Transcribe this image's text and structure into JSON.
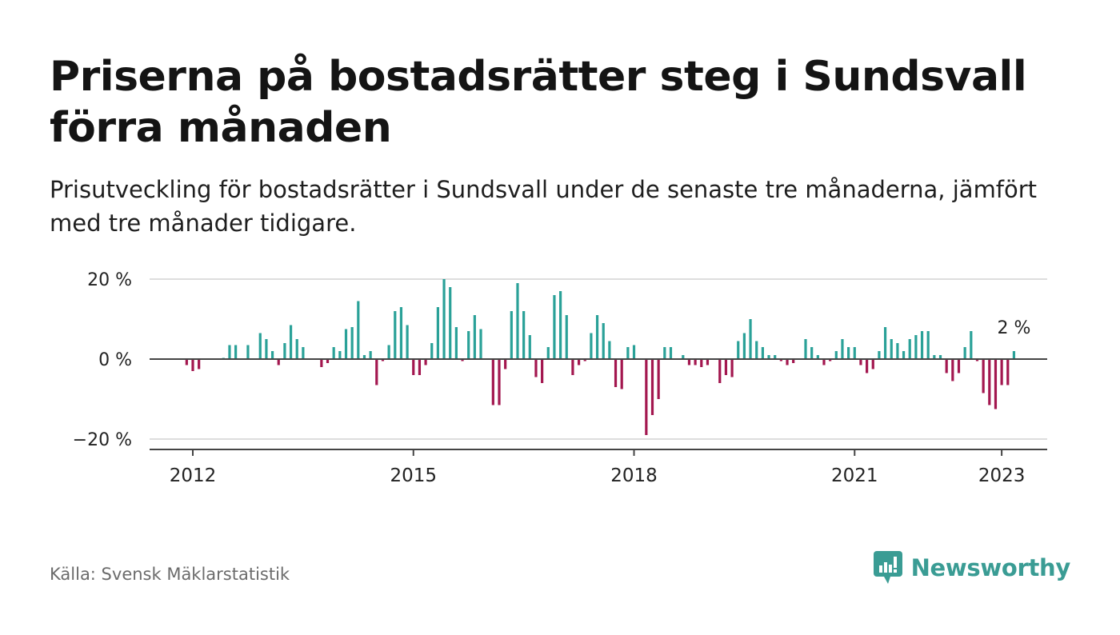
{
  "title": "Priserna på bostadsrätter steg i Sundsvall förra månaden",
  "subtitle": "Prisutveckling för bostadsrätter i Sundsvall under de senaste tre månaderna, jämfört med tre månader tidigare.",
  "source": "Källa: Svensk Mäklarstatistik",
  "brand": "Newsworthy",
  "colors": {
    "positive": "#2aa198",
    "negative": "#a3174f",
    "brand": "#3a9c94",
    "grid": "#dddddd",
    "axis": "#444444"
  },
  "chart_data": {
    "type": "bar",
    "x_start": "2011-06",
    "y_ticks": [
      {
        "value": 20,
        "label": "20 %"
      },
      {
        "value": 0,
        "label": "0 %"
      },
      {
        "value": -20,
        "label": "−20 %"
      }
    ],
    "x_ticks": [
      "2012",
      "2015",
      "2018",
      "2021",
      "2023"
    ],
    "ylim": [
      -22.5,
      22
    ],
    "grid": true,
    "annotation": "2 %",
    "values": [
      0,
      0,
      0,
      0,
      0,
      0,
      -1.5,
      -3,
      -2.5,
      0,
      0,
      0,
      0.3,
      3.5,
      3.5,
      0,
      3.5,
      0,
      6.5,
      5,
      2,
      -1.5,
      4,
      8.5,
      5,
      3,
      0,
      0,
      -2,
      -1,
      3,
      2,
      7.5,
      8,
      14.5,
      1,
      2,
      -6.5,
      -0.5,
      3.5,
      12,
      13,
      8.5,
      -4,
      -4,
      -1.5,
      4,
      13,
      20,
      18,
      8,
      -0.5,
      7,
      11,
      7.5,
      0,
      -11.5,
      -11.5,
      -2.5,
      12,
      19,
      12,
      6,
      -4.5,
      -6,
      3,
      16,
      17,
      11,
      -4,
      -1.5,
      -0.5,
      6.5,
      11,
      9,
      4.5,
      -7,
      -7.5,
      3,
      3.5,
      0,
      -19,
      -14,
      -10,
      3,
      3,
      0,
      1,
      -1.5,
      -1.5,
      -2,
      -1.5,
      0,
      -6,
      -4,
      -4.5,
      4.5,
      6.5,
      10,
      4.5,
      3,
      1,
      1,
      -0.5,
      -1.5,
      -1,
      0,
      5,
      3,
      1,
      -1.5,
      -0.5,
      2,
      5,
      3,
      3,
      -1.5,
      -3.5,
      -2.5,
      2,
      8,
      5,
      4,
      2,
      5,
      6,
      7,
      7,
      1,
      1,
      -3.5,
      -5.5,
      -3.5,
      3,
      7,
      -0.5,
      -8.5,
      -11.5,
      -12.5,
      -6.5,
      -6.5,
      2
    ]
  }
}
